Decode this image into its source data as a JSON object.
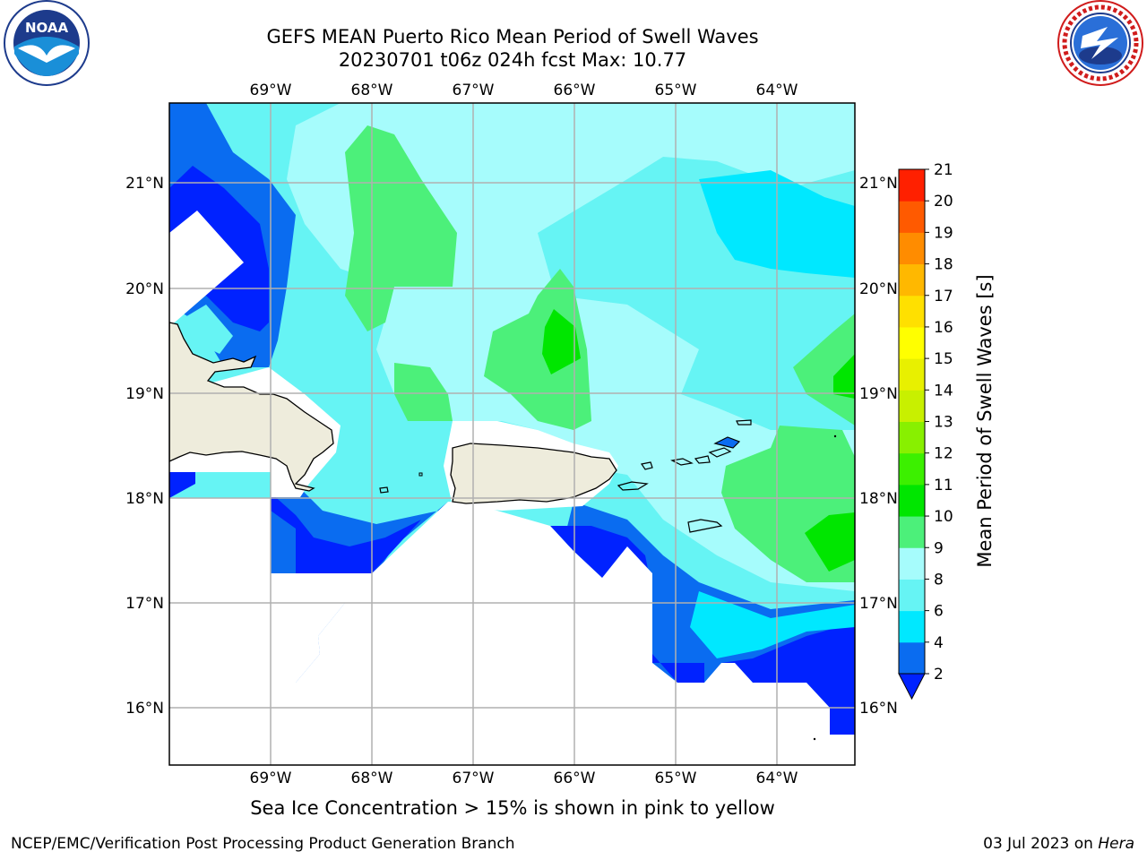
{
  "header": {
    "title_line1": "GEFS MEAN Puerto Rico Mean Period of Swell Waves",
    "title_line2": "20230701 t06z 024h fcst   Max: 10.77"
  },
  "logos": {
    "left": {
      "name": "noaa-logo",
      "text": "NOAA",
      "ring_text": "NATIONAL OCEANIC AND ATMOSPHERIC ADMINISTRATION · U.S. DEPARTMENT OF COMMERCE"
    },
    "right": {
      "name": "nws-logo",
      "ring_text": "NATIONAL WEATHER SERVICE"
    }
  },
  "map": {
    "lon_labels": [
      "69°W",
      "68°W",
      "67°W",
      "66°W",
      "65°W",
      "64°W"
    ],
    "lat_labels": [
      "21°N",
      "20°N",
      "19°N",
      "18°N",
      "17°N",
      "16°N"
    ],
    "extent": {
      "lon_min": -70.0,
      "lon_max": -63.25,
      "lat_min": 15.45,
      "lat_max": 21.75
    },
    "land_color": "#eeecdc",
    "grid_color": "#b0b0b0"
  },
  "colorbar": {
    "label": "Mean Period of Swell Waves [s]",
    "levels": [
      2,
      4,
      6,
      8,
      9,
      10,
      11,
      12,
      13,
      14,
      15,
      16,
      17,
      18,
      19,
      20,
      21
    ],
    "tick_labels": [
      "2",
      "4",
      "6",
      "8",
      "9",
      "10",
      "11",
      "12",
      "13",
      "14",
      "15",
      "16",
      "17",
      "18",
      "19",
      "20",
      "21"
    ],
    "colors": [
      "#0a6cf0",
      "#00e8ff",
      "#66f4f4",
      "#a6fcfc",
      "#4cf07a",
      "#00e600",
      "#3cf000",
      "#88f000",
      "#c8f000",
      "#e8f000",
      "#ffff00",
      "#ffe000",
      "#ffb800",
      "#ff8c00",
      "#ff5a00",
      "#ff2000"
    ],
    "under_color": "#0022ff"
  },
  "footer": {
    "note": "Sea Ice Concentration > 15% is shown in pink to yellow",
    "left": "NCEP/EMC/Verification Post Processing Product Generation Branch",
    "right_date": "03 Jul 2023 on",
    "right_host": "Hera"
  }
}
